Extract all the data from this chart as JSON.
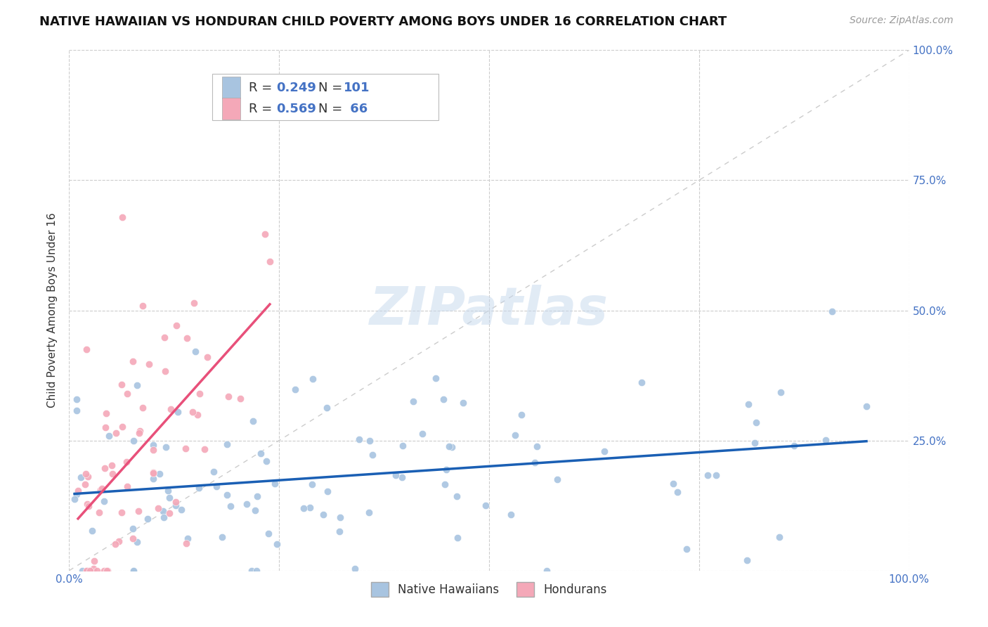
{
  "title": "NATIVE HAWAIIAN VS HONDURAN CHILD POVERTY AMONG BOYS UNDER 16 CORRELATION CHART",
  "source": "Source: ZipAtlas.com",
  "ylabel": "Child Poverty Among Boys Under 16",
  "xlim": [
    0,
    1
  ],
  "ylim": [
    0,
    1
  ],
  "nh_R": 0.249,
  "nh_N": 101,
  "hon_R": 0.569,
  "hon_N": 66,
  "nh_color": "#a8c4e0",
  "hon_color": "#f4a8b8",
  "nh_line_color": "#1a5fb4",
  "hon_line_color": "#e8507a",
  "diagonal_color": "#cccccc",
  "background_color": "#ffffff",
  "watermark_text": "ZIPatlas",
  "title_fontsize": 13,
  "axis_label_fontsize": 11,
  "tick_fontsize": 11,
  "legend_fontsize": 13,
  "legend_num_color": "#4472c4",
  "tick_color": "#4472c4"
}
